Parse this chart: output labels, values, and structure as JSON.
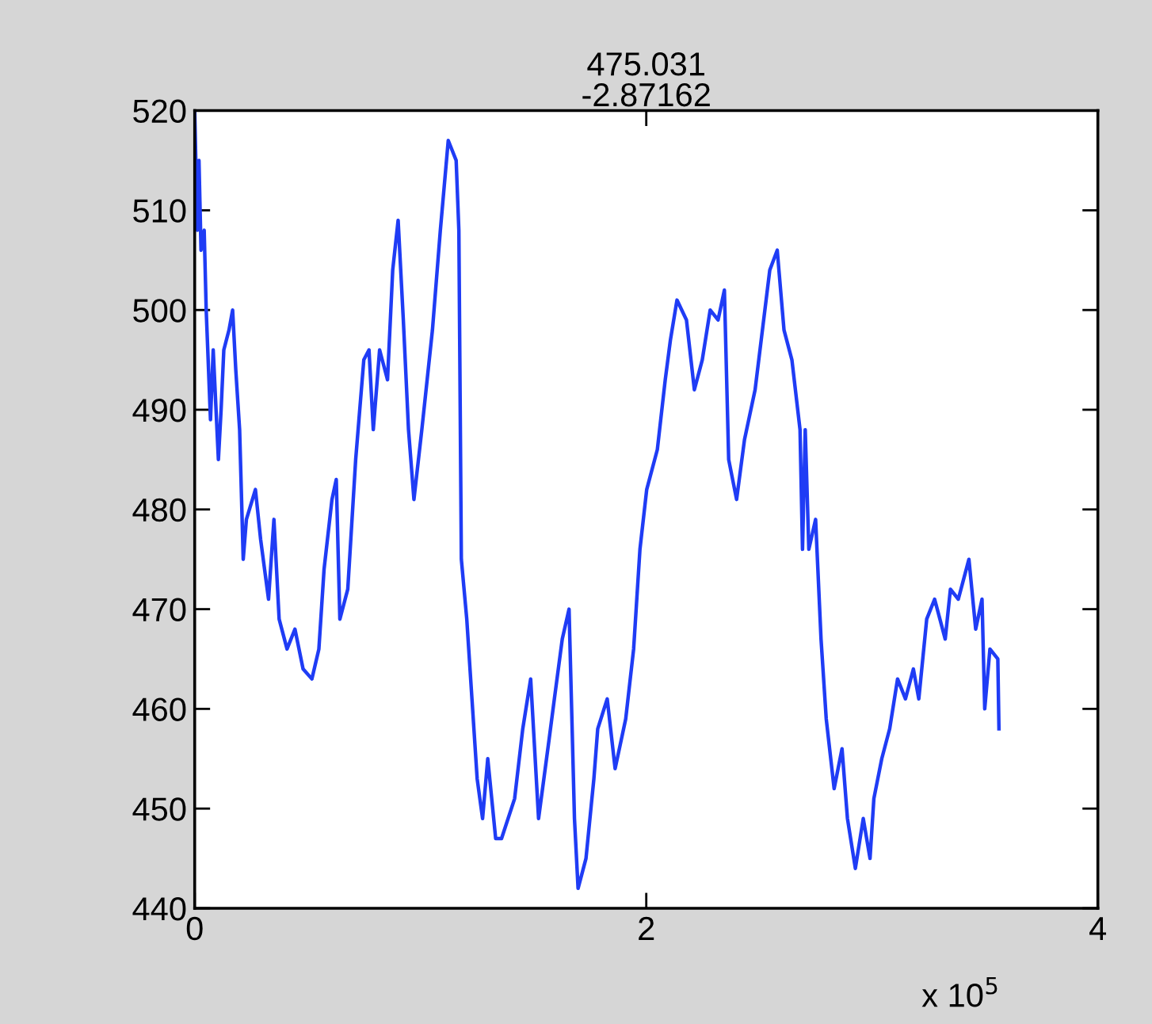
{
  "chart_data": {
    "type": "line",
    "title": "475.031\n-2.87162",
    "series": [
      {
        "color": "#1f3cf5",
        "x": [
          0,
          0.012,
          0.019,
          0.028,
          0.042,
          0.051,
          0.07,
          0.082,
          0.105,
          0.117,
          0.129,
          0.152,
          0.168,
          0.182,
          0.199,
          0.215,
          0.229,
          0.269,
          0.292,
          0.327,
          0.351,
          0.374,
          0.409,
          0.444,
          0.48,
          0.519,
          0.55,
          0.573,
          0.608,
          0.627,
          0.643,
          0.678,
          0.713,
          0.749,
          0.772,
          0.791,
          0.819,
          0.854,
          0.877,
          0.901,
          0.924,
          0.947,
          0.971,
          1.006,
          1.053,
          1.088,
          1.123,
          1.158,
          1.17,
          1.181,
          1.205,
          1.228,
          1.251,
          1.275,
          1.298,
          1.333,
          1.359,
          1.417,
          1.453,
          1.488,
          1.523,
          1.57,
          1.593,
          1.628,
          1.658,
          1.682,
          1.698,
          1.733,
          1.768,
          1.785,
          1.827,
          1.862,
          1.909,
          1.944,
          1.972,
          2.002,
          2.049,
          2.084,
          2.107,
          2.136,
          2.178,
          2.213,
          2.248,
          2.283,
          2.318,
          2.346,
          2.365,
          2.4,
          2.435,
          2.482,
          2.547,
          2.58,
          2.61,
          2.645,
          2.681,
          2.692,
          2.704,
          2.72,
          2.75,
          2.774,
          2.797,
          2.832,
          2.867,
          2.891,
          2.926,
          2.961,
          2.991,
          3.008,
          3.043,
          3.078,
          3.113,
          3.148,
          3.183,
          3.207,
          3.242,
          3.277,
          3.324,
          3.347,
          3.382,
          3.429,
          3.459,
          3.487,
          3.499,
          3.522,
          3.557,
          3.562
        ],
        "values": [
          520,
          508,
          515,
          506,
          508,
          500,
          489,
          496,
          485,
          490,
          496,
          498,
          500,
          494,
          488,
          475,
          479,
          482,
          477,
          471,
          479,
          469,
          466,
          468,
          464,
          463,
          466,
          474,
          481,
          483,
          469,
          472,
          485,
          495,
          496,
          488,
          496,
          493,
          504,
          509,
          499,
          488,
          481,
          488,
          498,
          508,
          517,
          515,
          508,
          475,
          469,
          461,
          453,
          449,
          455,
          447,
          447,
          451,
          458,
          463,
          449,
          457,
          461,
          467,
          470,
          449,
          442,
          445,
          453,
          458,
          461,
          454,
          459,
          466,
          476,
          482,
          486,
          493,
          497,
          501,
          499,
          492,
          495,
          500,
          499,
          502,
          485,
          481,
          487,
          492,
          504,
          506,
          498,
          495,
          488,
          476,
          488,
          476,
          479,
          467,
          459,
          452,
          456,
          449,
          444,
          449,
          445,
          451,
          455,
          458,
          463,
          461,
          464,
          461,
          469,
          471,
          467,
          472,
          471,
          475,
          468,
          471,
          460,
          466,
          465,
          458
        ]
      }
    ],
    "xlim": [
      0,
      4
    ],
    "xticks": [
      0,
      2,
      4
    ],
    "ylim": [
      440,
      520
    ],
    "yticks": [
      440,
      450,
      460,
      470,
      480,
      490,
      500,
      510,
      520
    ],
    "grid": false,
    "legend": false,
    "line_style": "solid",
    "marker": "none",
    "annotations": [
      "x 10$^{5}$"
    ]
  }
}
